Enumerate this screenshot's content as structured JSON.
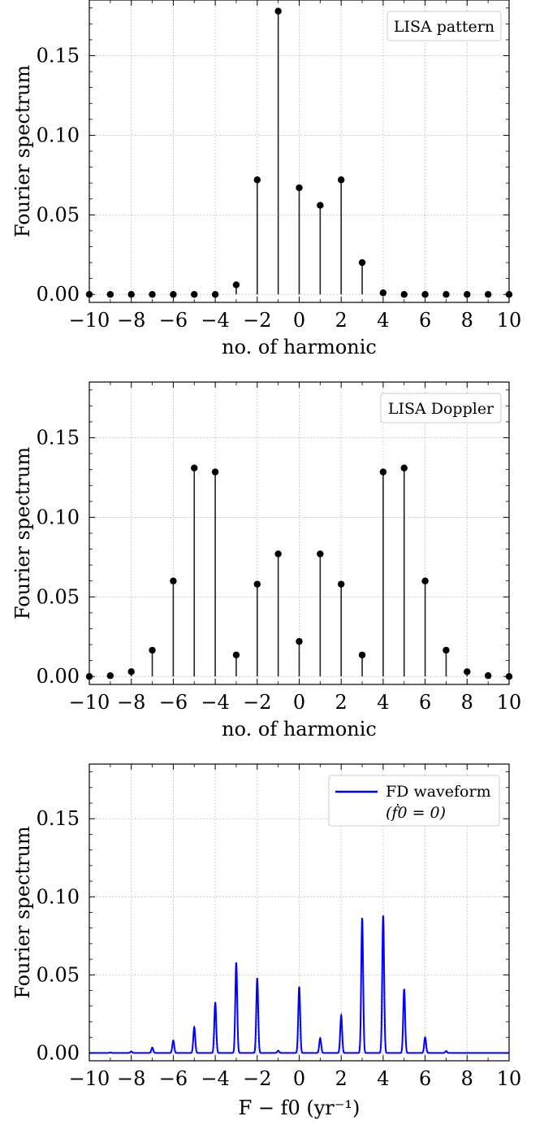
{
  "chart_data": [
    {
      "type": "stem",
      "ylabel": "Fourier spectrum",
      "xlabel": "no. of harmonic",
      "legend": "LISA pattern",
      "legend_position": "top-right",
      "grid": true,
      "xlim": [
        -10,
        10
      ],
      "ylim": [
        -0.005,
        0.185
      ],
      "xticks": [
        "−10",
        "−8",
        "−6",
        "−4",
        "−2",
        "0",
        "2",
        "4",
        "6",
        "8",
        "10"
      ],
      "yticks": [
        "0.00",
        "0.05",
        "0.10",
        "0.15"
      ],
      "x": [
        -10,
        -9,
        -8,
        -7,
        -6,
        -5,
        -4,
        -3,
        -2,
        -1,
        0,
        1,
        2,
        3,
        4,
        5,
        6,
        7,
        8,
        9,
        10
      ],
      "values": [
        0,
        0,
        0,
        0,
        0,
        0,
        0,
        0.006,
        0.072,
        0.178,
        0.067,
        0.056,
        0.072,
        0.02,
        0.001,
        0,
        0,
        0,
        0,
        0,
        0
      ]
    },
    {
      "type": "stem",
      "ylabel": "Fourier spectrum",
      "xlabel": "no. of harmonic",
      "legend": "LISA Doppler",
      "legend_position": "top-right",
      "grid": true,
      "xlim": [
        -10,
        10
      ],
      "ylim": [
        -0.005,
        0.185
      ],
      "xticks": [
        "−10",
        "−8",
        "−6",
        "−4",
        "−2",
        "0",
        "2",
        "4",
        "6",
        "8",
        "10"
      ],
      "yticks": [
        "0.00",
        "0.05",
        "0.10",
        "0.15"
      ],
      "x": [
        -10,
        -9,
        -8,
        -7,
        -6,
        -5,
        -4,
        -3,
        -2,
        -1,
        0,
        1,
        2,
        3,
        4,
        5,
        6,
        7,
        8,
        9,
        10
      ],
      "values": [
        0,
        0.0005,
        0.003,
        0.0165,
        0.06,
        0.131,
        0.1285,
        0.0135,
        0.058,
        0.077,
        0.022,
        0.077,
        0.058,
        0.0135,
        0.1285,
        0.131,
        0.06,
        0.0165,
        0.003,
        0.0005,
        0
      ]
    },
    {
      "type": "line",
      "ylabel": "Fourier spectrum",
      "xlabel": "F − f0 (yr⁻¹)",
      "legend": [
        "FD waveform",
        "(ḟ0 = 0)"
      ],
      "legend_position": "top-right",
      "color": "#0000ff",
      "grid": true,
      "xlim": [
        -10,
        10
      ],
      "ylim": [
        -0.005,
        0.185
      ],
      "xticks": [
        "−10",
        "−8",
        "−6",
        "−4",
        "−2",
        "0",
        "2",
        "4",
        "6",
        "8",
        "10"
      ],
      "yticks": [
        "0.00",
        "0.05",
        "0.10",
        "0.15"
      ],
      "peaks_x": [
        -9,
        -8,
        -7,
        -6,
        -5,
        -4,
        -3,
        -2,
        -1,
        0,
        1,
        2,
        3,
        4,
        5,
        6,
        7
      ],
      "peaks_y": [
        0.0003,
        0.001,
        0.0035,
        0.008,
        0.0165,
        0.0325,
        0.058,
        0.048,
        0.0015,
        0.0425,
        0.0095,
        0.024,
        0.0865,
        0.088,
        0.041,
        0.01,
        0.0012
      ]
    }
  ]
}
